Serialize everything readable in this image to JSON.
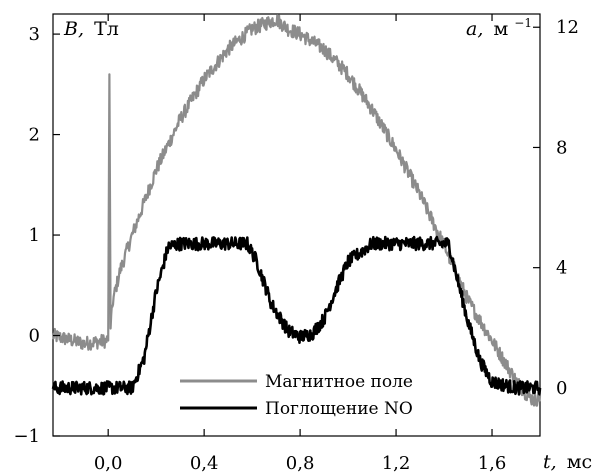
{
  "chart_data": {
    "type": "line",
    "x_axis": {
      "label_var": "t,",
      "label_unit": "мс",
      "range": [
        -0.23,
        1.8
      ],
      "ticks": [
        {
          "value": 0.0,
          "label": "0,0"
        },
        {
          "value": 0.4,
          "label": "0,4"
        },
        {
          "value": 0.8,
          "label": "0,8"
        },
        {
          "value": 1.2,
          "label": "1,2"
        },
        {
          "value": 1.6,
          "label": "1,6"
        }
      ]
    },
    "y_left": {
      "label_var": "B,",
      "label_unit": "Тл",
      "range": [
        -1,
        3.2
      ],
      "ticks": [
        {
          "value": -1,
          "label": "−1"
        },
        {
          "value": 0,
          "label": "0"
        },
        {
          "value": 1,
          "label": "1"
        },
        {
          "value": 2,
          "label": "2"
        },
        {
          "value": 3,
          "label": "3"
        }
      ]
    },
    "y_right": {
      "label_var": "a,",
      "label_unit": "м",
      "label_sup": "−1",
      "range": [
        -1.6,
        12.44
      ],
      "ticks": [
        {
          "value": 0,
          "label": "0"
        },
        {
          "value": 4,
          "label": "4"
        },
        {
          "value": 8,
          "label": "8"
        },
        {
          "value": 12,
          "label": "12"
        }
      ]
    },
    "legend_position": "bottom-center",
    "grid": false,
    "series": [
      {
        "name": "Магнитное поле",
        "axis": "left",
        "color": "#8c8c8c",
        "x": [
          -0.23,
          -0.1,
          0.0,
          0.005,
          0.01,
          0.02,
          0.05,
          0.1,
          0.2,
          0.3,
          0.4,
          0.5,
          0.6,
          0.7,
          0.75,
          0.8,
          0.9,
          1.0,
          1.1,
          1.2,
          1.3,
          1.4,
          1.5,
          1.6,
          1.7,
          1.75,
          1.78,
          1.8
        ],
        "y": [
          0.0,
          -0.08,
          -0.05,
          2.6,
          0.1,
          0.35,
          0.65,
          1.0,
          1.65,
          2.15,
          2.55,
          2.85,
          3.05,
          3.15,
          3.05,
          3.0,
          2.85,
          2.6,
          2.25,
          1.85,
          1.4,
          0.9,
          0.35,
          -0.05,
          -0.45,
          -0.6,
          -0.65,
          -0.6
        ]
      },
      {
        "name": "Поглощение NO",
        "axis": "right",
        "color": "#000000",
        "x": [
          -0.23,
          0.1,
          0.15,
          0.2,
          0.25,
          0.3,
          0.4,
          0.5,
          0.58,
          0.62,
          0.68,
          0.75,
          0.8,
          0.85,
          0.9,
          0.95,
          1.0,
          1.05,
          1.1,
          1.2,
          1.3,
          1.42,
          1.45,
          1.5,
          1.55,
          1.6,
          1.7,
          1.8
        ],
        "y": [
          0.0,
          0.0,
          1.0,
          3.2,
          4.7,
          4.8,
          4.8,
          4.8,
          4.8,
          4.2,
          2.8,
          1.9,
          1.7,
          1.8,
          2.3,
          3.3,
          4.2,
          4.5,
          4.8,
          4.8,
          4.8,
          4.8,
          3.8,
          2.2,
          0.9,
          0.2,
          0.0,
          0.0
        ]
      }
    ]
  }
}
